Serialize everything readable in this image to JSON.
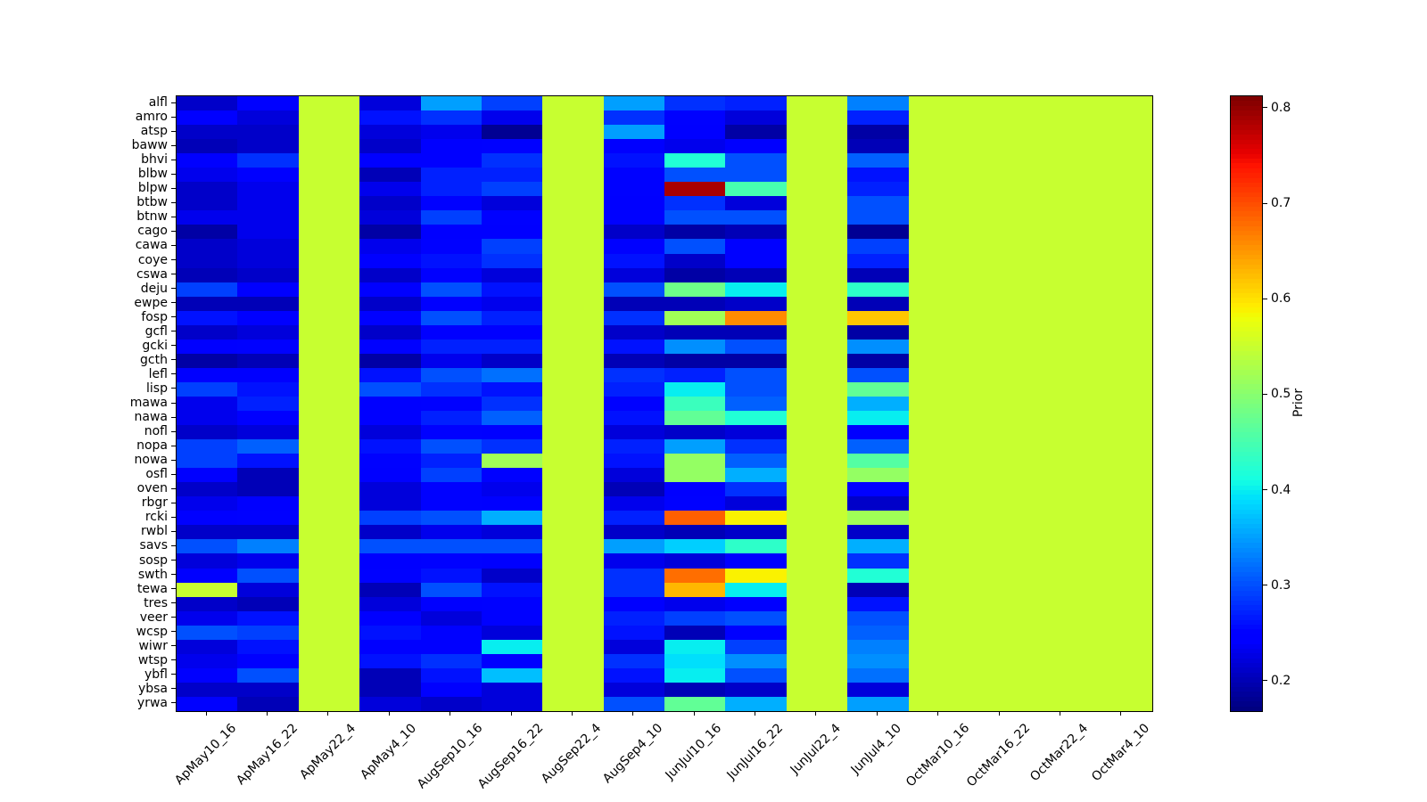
{
  "figure": {
    "background": "#ffffff"
  },
  "chart_data": {
    "type": "heatmap",
    "colormap": "jet",
    "vmin": 0.169,
    "vmax": 0.813,
    "grid": false,
    "colorbar": {
      "label": "Prior",
      "ticks": [
        0.2,
        0.3,
        0.4,
        0.5,
        0.6,
        0.7,
        0.8
      ],
      "position": "right"
    },
    "x_categories": [
      "ApMay10_16",
      "ApMay16_22",
      "ApMay22_4",
      "ApMay4_10",
      "AugSep10_16",
      "AugSep16_22",
      "AugSep22_4",
      "AugSep4_10",
      "JunJul10_16",
      "JunJul16_22",
      "JunJul22_4",
      "JunJul4_10",
      "OctMar10_16",
      "OctMar16_22",
      "OctMar22_4",
      "OctMar4_10"
    ],
    "y_categories": [
      "alfl",
      "amro",
      "atsp",
      "baww",
      "bhvi",
      "blbw",
      "blpw",
      "btbw",
      "btnw",
      "cago",
      "cawa",
      "coye",
      "cswa",
      "deju",
      "ewpe",
      "fosp",
      "gcfl",
      "gcki",
      "gcth",
      "lefl",
      "lisp",
      "mawa",
      "nawa",
      "nofl",
      "nopa",
      "nowa",
      "osfl",
      "oven",
      "rbgr",
      "rcki",
      "rwbl",
      "savs",
      "sosp",
      "swth",
      "tewa",
      "tres",
      "veer",
      "wcsp",
      "wiwr",
      "wtsp",
      "ybfl",
      "ybsa",
      "yrwa"
    ],
    "values": [
      [
        0.21,
        0.25,
        0.55,
        0.22,
        0.35,
        0.29,
        0.55,
        0.35,
        0.28,
        0.27,
        0.55,
        0.33,
        0.55,
        0.55,
        0.55,
        0.55
      ],
      [
        0.24,
        0.22,
        0.55,
        0.26,
        0.28,
        0.23,
        0.55,
        0.28,
        0.25,
        0.22,
        0.55,
        0.27,
        0.55,
        0.55,
        0.55,
        0.55
      ],
      [
        0.21,
        0.21,
        0.55,
        0.22,
        0.23,
        0.18,
        0.55,
        0.35,
        0.24,
        0.19,
        0.55,
        0.19,
        0.55,
        0.55,
        0.55,
        0.55
      ],
      [
        0.2,
        0.21,
        0.55,
        0.21,
        0.24,
        0.25,
        0.55,
        0.24,
        0.23,
        0.24,
        0.55,
        0.2,
        0.55,
        0.55,
        0.55,
        0.55
      ],
      [
        0.24,
        0.28,
        0.55,
        0.24,
        0.24,
        0.28,
        0.55,
        0.26,
        0.42,
        0.3,
        0.55,
        0.31,
        0.55,
        0.55,
        0.55,
        0.55
      ],
      [
        0.23,
        0.24,
        0.55,
        0.2,
        0.27,
        0.27,
        0.55,
        0.25,
        0.3,
        0.3,
        0.55,
        0.26,
        0.55,
        0.55,
        0.55,
        0.55
      ],
      [
        0.21,
        0.23,
        0.55,
        0.23,
        0.27,
        0.29,
        0.55,
        0.25,
        0.79,
        0.45,
        0.55,
        0.27,
        0.55,
        0.55,
        0.55,
        0.55
      ],
      [
        0.21,
        0.23,
        0.55,
        0.21,
        0.25,
        0.22,
        0.55,
        0.24,
        0.28,
        0.22,
        0.55,
        0.3,
        0.55,
        0.55,
        0.55,
        0.55
      ],
      [
        0.23,
        0.23,
        0.55,
        0.22,
        0.29,
        0.25,
        0.55,
        0.25,
        0.3,
        0.3,
        0.55,
        0.3,
        0.55,
        0.55,
        0.55,
        0.55
      ],
      [
        0.19,
        0.23,
        0.55,
        0.19,
        0.24,
        0.24,
        0.55,
        0.21,
        0.19,
        0.2,
        0.55,
        0.18,
        0.55,
        0.55,
        0.55,
        0.55
      ],
      [
        0.21,
        0.22,
        0.55,
        0.23,
        0.25,
        0.29,
        0.55,
        0.25,
        0.3,
        0.25,
        0.55,
        0.29,
        0.55,
        0.55,
        0.55,
        0.55
      ],
      [
        0.21,
        0.22,
        0.55,
        0.24,
        0.26,
        0.28,
        0.55,
        0.26,
        0.21,
        0.25,
        0.55,
        0.27,
        0.55,
        0.55,
        0.55,
        0.55
      ],
      [
        0.2,
        0.21,
        0.55,
        0.21,
        0.24,
        0.22,
        0.55,
        0.22,
        0.19,
        0.2,
        0.55,
        0.2,
        0.55,
        0.55,
        0.55,
        0.55
      ],
      [
        0.29,
        0.24,
        0.55,
        0.24,
        0.3,
        0.26,
        0.55,
        0.3,
        0.48,
        0.4,
        0.55,
        0.43,
        0.55,
        0.55,
        0.55,
        0.55
      ],
      [
        0.2,
        0.2,
        0.55,
        0.21,
        0.24,
        0.23,
        0.55,
        0.2,
        0.2,
        0.21,
        0.55,
        0.2,
        0.55,
        0.55,
        0.55,
        0.55
      ],
      [
        0.26,
        0.24,
        0.55,
        0.25,
        0.3,
        0.27,
        0.55,
        0.28,
        0.52,
        0.66,
        0.55,
        0.62,
        0.55,
        0.55,
        0.55,
        0.55
      ],
      [
        0.21,
        0.22,
        0.55,
        0.21,
        0.24,
        0.24,
        0.55,
        0.21,
        0.2,
        0.2,
        0.55,
        0.19,
        0.55,
        0.55,
        0.55,
        0.55
      ],
      [
        0.24,
        0.25,
        0.55,
        0.25,
        0.27,
        0.27,
        0.55,
        0.26,
        0.34,
        0.3,
        0.55,
        0.34,
        0.55,
        0.55,
        0.55,
        0.55
      ],
      [
        0.19,
        0.2,
        0.55,
        0.19,
        0.23,
        0.21,
        0.55,
        0.2,
        0.19,
        0.19,
        0.55,
        0.19,
        0.55,
        0.55,
        0.55,
        0.55
      ],
      [
        0.24,
        0.24,
        0.55,
        0.26,
        0.3,
        0.32,
        0.55,
        0.28,
        0.27,
        0.3,
        0.55,
        0.3,
        0.55,
        0.55,
        0.55,
        0.55
      ],
      [
        0.29,
        0.26,
        0.55,
        0.3,
        0.28,
        0.26,
        0.55,
        0.27,
        0.4,
        0.3,
        0.55,
        0.47,
        0.55,
        0.55,
        0.55,
        0.55
      ],
      [
        0.23,
        0.27,
        0.55,
        0.24,
        0.25,
        0.28,
        0.55,
        0.25,
        0.44,
        0.31,
        0.55,
        0.36,
        0.55,
        0.55,
        0.55,
        0.55
      ],
      [
        0.23,
        0.24,
        0.55,
        0.24,
        0.27,
        0.31,
        0.55,
        0.26,
        0.47,
        0.42,
        0.55,
        0.4,
        0.55,
        0.55,
        0.55,
        0.55
      ],
      [
        0.21,
        0.22,
        0.55,
        0.22,
        0.25,
        0.24,
        0.55,
        0.22,
        0.21,
        0.22,
        0.55,
        0.24,
        0.55,
        0.55,
        0.55,
        0.55
      ],
      [
        0.29,
        0.31,
        0.55,
        0.26,
        0.3,
        0.28,
        0.55,
        0.27,
        0.35,
        0.28,
        0.55,
        0.31,
        0.55,
        0.55,
        0.55,
        0.55
      ],
      [
        0.29,
        0.26,
        0.55,
        0.25,
        0.27,
        0.52,
        0.55,
        0.26,
        0.51,
        0.31,
        0.55,
        0.46,
        0.55,
        0.55,
        0.55,
        0.55
      ],
      [
        0.24,
        0.2,
        0.55,
        0.24,
        0.29,
        0.25,
        0.55,
        0.22,
        0.51,
        0.36,
        0.55,
        0.51,
        0.55,
        0.55,
        0.55,
        0.55
      ],
      [
        0.21,
        0.2,
        0.55,
        0.22,
        0.25,
        0.23,
        0.55,
        0.2,
        0.24,
        0.28,
        0.55,
        0.25,
        0.55,
        0.55,
        0.55,
        0.55
      ],
      [
        0.23,
        0.24,
        0.55,
        0.22,
        0.25,
        0.24,
        0.55,
        0.23,
        0.25,
        0.22,
        0.55,
        0.21,
        0.55,
        0.55,
        0.55,
        0.55
      ],
      [
        0.24,
        0.25,
        0.55,
        0.29,
        0.3,
        0.36,
        0.55,
        0.27,
        0.69,
        0.59,
        0.55,
        0.52,
        0.55,
        0.55,
        0.55,
        0.55
      ],
      [
        0.21,
        0.21,
        0.55,
        0.21,
        0.23,
        0.22,
        0.55,
        0.21,
        0.2,
        0.21,
        0.55,
        0.21,
        0.55,
        0.55,
        0.55,
        0.55
      ],
      [
        0.3,
        0.33,
        0.55,
        0.3,
        0.3,
        0.3,
        0.55,
        0.35,
        0.38,
        0.43,
        0.55,
        0.36,
        0.55,
        0.55,
        0.55,
        0.55
      ],
      [
        0.22,
        0.23,
        0.55,
        0.24,
        0.25,
        0.24,
        0.55,
        0.23,
        0.22,
        0.24,
        0.55,
        0.28,
        0.55,
        0.55,
        0.55,
        0.55
      ],
      [
        0.24,
        0.3,
        0.55,
        0.25,
        0.26,
        0.21,
        0.55,
        0.28,
        0.68,
        0.59,
        0.55,
        0.42,
        0.55,
        0.55,
        0.55,
        0.55
      ],
      [
        0.55,
        0.22,
        0.55,
        0.2,
        0.3,
        0.26,
        0.55,
        0.28,
        0.63,
        0.4,
        0.55,
        0.2,
        0.55,
        0.55,
        0.55,
        0.55
      ],
      [
        0.21,
        0.2,
        0.55,
        0.22,
        0.24,
        0.25,
        0.55,
        0.24,
        0.23,
        0.24,
        0.55,
        0.26,
        0.55,
        0.55,
        0.55,
        0.55
      ],
      [
        0.23,
        0.26,
        0.55,
        0.24,
        0.22,
        0.25,
        0.55,
        0.27,
        0.29,
        0.3,
        0.55,
        0.3,
        0.55,
        0.55,
        0.55,
        0.55
      ],
      [
        0.3,
        0.29,
        0.55,
        0.26,
        0.25,
        0.22,
        0.55,
        0.26,
        0.2,
        0.24,
        0.55,
        0.31,
        0.55,
        0.55,
        0.55,
        0.55
      ],
      [
        0.22,
        0.26,
        0.55,
        0.24,
        0.24,
        0.4,
        0.55,
        0.22,
        0.4,
        0.29,
        0.55,
        0.33,
        0.55,
        0.55,
        0.55,
        0.55
      ],
      [
        0.23,
        0.24,
        0.55,
        0.26,
        0.28,
        0.24,
        0.55,
        0.28,
        0.39,
        0.34,
        0.55,
        0.34,
        0.55,
        0.55,
        0.55,
        0.55
      ],
      [
        0.24,
        0.3,
        0.55,
        0.2,
        0.26,
        0.37,
        0.55,
        0.26,
        0.4,
        0.3,
        0.55,
        0.32,
        0.55,
        0.55,
        0.55,
        0.55
      ],
      [
        0.21,
        0.21,
        0.55,
        0.2,
        0.24,
        0.22,
        0.55,
        0.22,
        0.2,
        0.21,
        0.55,
        0.22,
        0.55,
        0.55,
        0.55,
        0.55
      ],
      [
        0.25,
        0.2,
        0.55,
        0.22,
        0.21,
        0.22,
        0.55,
        0.3,
        0.47,
        0.36,
        0.55,
        0.35,
        0.55,
        0.55,
        0.55,
        0.55
      ]
    ]
  }
}
